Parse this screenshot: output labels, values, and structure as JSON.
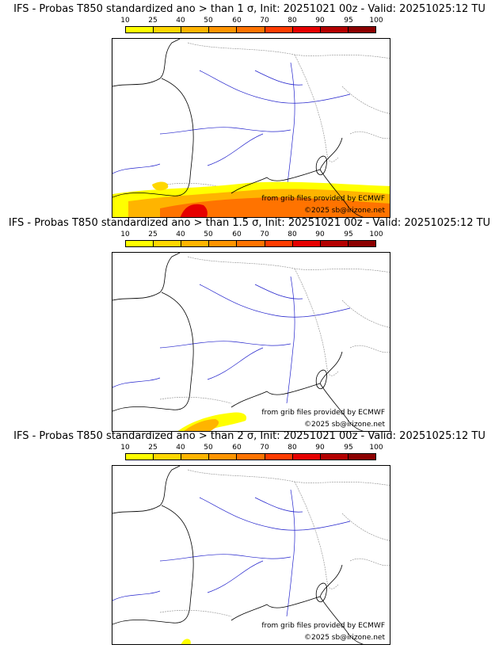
{
  "scale": {
    "ticks": [
      "10",
      "25",
      "40",
      "50",
      "60",
      "70",
      "80",
      "90",
      "95",
      "100"
    ],
    "colors": [
      "#ffff00",
      "#ffd700",
      "#ffb400",
      "#ff9400",
      "#ff7300",
      "#ff3c00",
      "#e60000",
      "#b40000",
      "#8c0000"
    ]
  },
  "credits": {
    "source": "from grib files provided by ECMWF",
    "copyright": "©2025 sb@irizone.net"
  },
  "panels": [
    {
      "title": "IFS - Probas T850  standardized ano > than 1 σ, Init: 20251021 00z - Valid: 20251025:12 TU",
      "coverage": "large"
    },
    {
      "title": "IFS - Probas T850  standardized ano > than 1.5 σ, Init: 20251021 00z - Valid: 20251025:12 TU",
      "coverage": "medium"
    },
    {
      "title": "IFS - Probas T850  standardized ano > than 2 σ, Init: 20251021 00z - Valid: 20251025:12 TU",
      "coverage": "small"
    }
  ]
}
